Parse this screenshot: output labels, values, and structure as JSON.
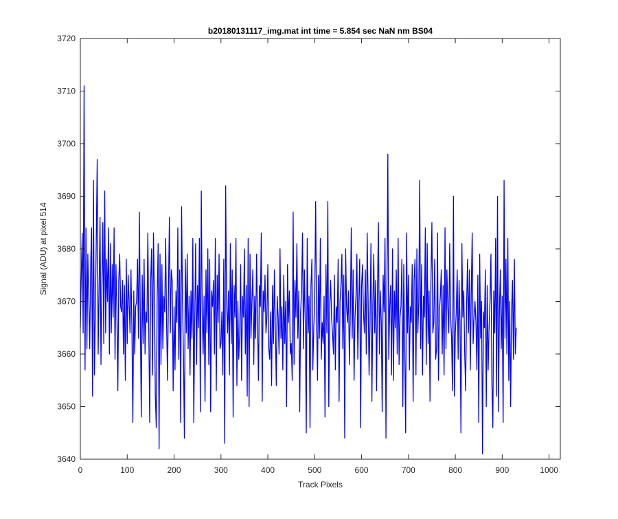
{
  "chart_data": {
    "type": "line",
    "title": "b20180131117_img.mat int time = 5.854 sec  NaN nm BS04",
    "xlabel": "Track Pixels",
    "ylabel": "Signal (ADU) at pixel 514",
    "xlim": [
      0,
      1024
    ],
    "ylim": [
      3640,
      3720
    ],
    "xticks": [
      0,
      100,
      200,
      300,
      400,
      500,
      600,
      700,
      800,
      900,
      1000
    ],
    "yticks": [
      3640,
      3650,
      3660,
      3670,
      3680,
      3690,
      3700,
      3710,
      3720
    ],
    "grid": false,
    "line_color": "#0000ff",
    "series": [
      {
        "x_start": 0,
        "x_step": 2,
        "values": [
          3665,
          3675,
          3683,
          3664,
          3711,
          3657,
          3684,
          3661,
          3679,
          3671,
          3661,
          3677,
          3684,
          3652,
          3693,
          3656,
          3668,
          3682,
          3697,
          3660,
          3672,
          3686,
          3658,
          3673,
          3685,
          3662,
          3691,
          3664,
          3678,
          3670,
          3684,
          3660,
          3681,
          3664,
          3677,
          3667,
          3684,
          3659,
          3677,
          3668,
          3653,
          3674,
          3679,
          3669,
          3668,
          3674,
          3660,
          3673,
          3655,
          3678,
          3662,
          3675,
          3670,
          3664,
          3676,
          3665,
          3647,
          3672,
          3660,
          3669,
          3670,
          3678,
          3663,
          3687,
          3666,
          3648,
          3675,
          3662,
          3678,
          3660,
          3668,
          3666,
          3683,
          3665,
          3647,
          3674,
          3680,
          3656,
          3683,
          3671,
          3652,
          3646,
          3671,
          3681,
          3642,
          3679,
          3658,
          3677,
          3661,
          3671,
          3668,
          3682,
          3666,
          3655,
          3672,
          3686,
          3664,
          3676,
          3674,
          3653,
          3669,
          3657,
          3672,
          3666,
          3684,
          3659,
          3676,
          3647,
          3688,
          3670,
          3660,
          3644,
          3678,
          3664,
          3679,
          3661,
          3671,
          3656,
          3672,
          3663,
          3682,
          3647,
          3666,
          3681,
          3658,
          3673,
          3665,
          3682,
          3649,
          3691,
          3668,
          3660,
          3671,
          3651,
          3676,
          3664,
          3680,
          3658,
          3678,
          3649,
          3672,
          3669,
          3674,
          3660,
          3682,
          3653,
          3675,
          3666,
          3679,
          3661,
          3662,
          3668,
          3656,
          3678,
          3643,
          3692,
          3670,
          3664,
          3672,
          3656,
          3681,
          3662,
          3676,
          3648,
          3673,
          3667,
          3682,
          3654,
          3670,
          3659,
          3664,
          3677,
          3655,
          3671,
          3667,
          3680,
          3660,
          3673,
          3652,
          3682,
          3650,
          3679,
          3663,
          3670,
          3676,
          3658,
          3671,
          3663,
          3679,
          3666,
          3655,
          3673,
          3669,
          3683,
          3651,
          3672,
          3668,
          3675,
          3664,
          3667,
          3677,
          3661,
          3659,
          3668,
          3654,
          3673,
          3662,
          3676,
          3665,
          3654,
          3671,
          3667,
          3660,
          3680,
          3663,
          3669,
          3657,
          3675,
          3662,
          3670,
          3650,
          3677,
          3666,
          3672,
          3660,
          3662,
          3655,
          3687,
          3658,
          3674,
          3667,
          3681,
          3663,
          3672,
          3649,
          3668,
          3672,
          3683,
          3661,
          3676,
          3666,
          3645,
          3682,
          3664,
          3671,
          3646,
          3673,
          3678,
          3657,
          3665,
          3670,
          3689,
          3667,
          3655,
          3675,
          3663,
          3682,
          3659,
          3666,
          3662,
          3671,
          3648,
          3677,
          3664,
          3689,
          3650,
          3669,
          3674,
          3667,
          3664,
          3660,
          3675,
          3657,
          3669,
          3666,
          3678,
          3651,
          3670,
          3673,
          3679,
          3661,
          3675,
          3644,
          3680,
          3669,
          3666,
          3672,
          3658,
          3668,
          3684,
          3663,
          3676,
          3655,
          3667,
          3671,
          3679,
          3659,
          3670,
          3678,
          3646,
          3673,
          3677,
          3668,
          3664,
          3676,
          3660,
          3683,
          3670,
          3656,
          3666,
          3681,
          3651,
          3669,
          3679,
          3664,
          3674,
          3653,
          3673,
          3685,
          3660,
          3672,
          3666,
          3649,
          3675,
          3668,
          3682,
          3644,
          3671,
          3698,
          3659,
          3669,
          3673,
          3656,
          3680,
          3655,
          3672,
          3665,
          3676,
          3660,
          3682,
          3658,
          3667,
          3669,
          3678,
          3650,
          3677,
          3661,
          3645,
          3683,
          3664,
          3675,
          3657,
          3669,
          3666,
          3677,
          3651,
          3674,
          3678,
          3656,
          3680,
          3664,
          3670,
          3693,
          3661,
          3677,
          3656,
          3671,
          3667,
          3684,
          3658,
          3681,
          3662,
          3672,
          3651,
          3674,
          3685,
          3664,
          3666,
          3678,
          3659,
          3661,
          3683,
          3655,
          3668,
          3671,
          3676,
          3660,
          3673,
          3656,
          3684,
          3661,
          3676,
          3669,
          3664,
          3681,
          3667,
          3663,
          3653,
          3690,
          3652,
          3664,
          3668,
          3676,
          3659,
          3674,
          3666,
          3645,
          3681,
          3667,
          3672,
          3660,
          3653,
          3669,
          3678,
          3664,
          3676,
          3657,
          3672,
          3683,
          3662,
          3667,
          3670,
          3666,
          3657,
          3675,
          3647,
          3679,
          3663,
          3670,
          3641,
          3668,
          3665,
          3676,
          3650,
          3673,
          3657,
          3665,
          3670,
          3679,
          3655,
          3646,
          3672,
          3664,
          3682,
          3652,
          3690,
          3649,
          3668,
          3676,
          3661,
          3671,
          3647,
          3693,
          3663,
          3678,
          3660,
          3682,
          3655,
          3670,
          3650,
          3668,
          3674,
          3659,
          3678,
          3660,
          3665
        ]
      }
    ]
  }
}
